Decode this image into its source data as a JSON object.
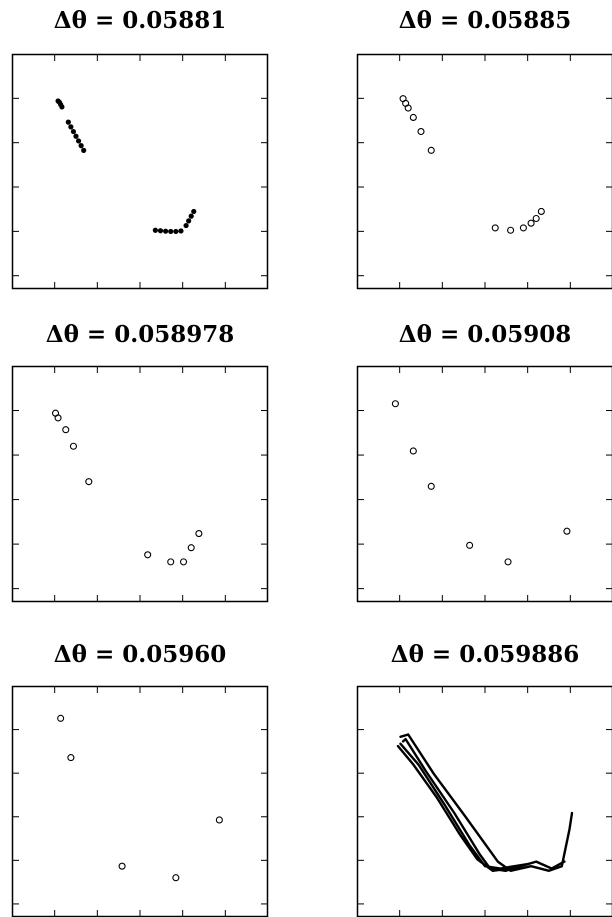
{
  "chart_data": [
    {
      "type": "scatter",
      "title": "Δθ = 0.05881",
      "xlim": [
        0,
        1
      ],
      "ylim": [
        0,
        1
      ],
      "marker": "dense",
      "points": [
        [
          0.18,
          0.8
        ],
        [
          0.185,
          0.795
        ],
        [
          0.19,
          0.785
        ],
        [
          0.195,
          0.775
        ],
        [
          0.22,
          0.71
        ],
        [
          0.23,
          0.69
        ],
        [
          0.24,
          0.67
        ],
        [
          0.25,
          0.65
        ],
        [
          0.26,
          0.63
        ],
        [
          0.27,
          0.61
        ],
        [
          0.28,
          0.59
        ],
        [
          0.56,
          0.25
        ],
        [
          0.58,
          0.248
        ],
        [
          0.6,
          0.246
        ],
        [
          0.62,
          0.245
        ],
        [
          0.64,
          0.245
        ],
        [
          0.66,
          0.247
        ],
        [
          0.68,
          0.27
        ],
        [
          0.69,
          0.29
        ],
        [
          0.7,
          0.31
        ],
        [
          0.71,
          0.33
        ]
      ]
    },
    {
      "type": "scatter",
      "title": "Δθ = 0.05885",
      "xlim": [
        0,
        1
      ],
      "ylim": [
        0,
        1
      ],
      "marker": "circle",
      "points": [
        [
          0.18,
          0.81
        ],
        [
          0.19,
          0.79
        ],
        [
          0.2,
          0.77
        ],
        [
          0.22,
          0.73
        ],
        [
          0.25,
          0.67
        ],
        [
          0.29,
          0.59
        ],
        [
          0.54,
          0.26
        ],
        [
          0.6,
          0.25
        ],
        [
          0.65,
          0.26
        ],
        [
          0.68,
          0.28
        ],
        [
          0.7,
          0.3
        ],
        [
          0.72,
          0.33
        ]
      ]
    },
    {
      "type": "scatter",
      "title": "Δθ = 0.058978",
      "xlim": [
        0,
        1
      ],
      "ylim": [
        0,
        1
      ],
      "marker": "circle",
      "points": [
        [
          0.17,
          0.8
        ],
        [
          0.18,
          0.78
        ],
        [
          0.21,
          0.73
        ],
        [
          0.24,
          0.66
        ],
        [
          0.3,
          0.51
        ],
        [
          0.53,
          0.2
        ],
        [
          0.62,
          0.17
        ],
        [
          0.67,
          0.17
        ],
        [
          0.7,
          0.23
        ],
        [
          0.73,
          0.29
        ]
      ]
    },
    {
      "type": "scatter",
      "title": "Δθ = 0.05908",
      "xlim": [
        0,
        1
      ],
      "ylim": [
        0,
        1
      ],
      "marker": "circle",
      "points": [
        [
          0.15,
          0.84
        ],
        [
          0.22,
          0.64
        ],
        [
          0.29,
          0.49
        ],
        [
          0.44,
          0.24
        ],
        [
          0.59,
          0.17
        ],
        [
          0.82,
          0.3
        ]
      ]
    },
    {
      "type": "scatter",
      "title": "Δθ = 0.05960",
      "xlim": [
        0,
        1
      ],
      "ylim": [
        0,
        1
      ],
      "marker": "circle",
      "points": [
        [
          0.19,
          0.86
        ],
        [
          0.23,
          0.69
        ],
        [
          0.43,
          0.22
        ],
        [
          0.64,
          0.17
        ],
        [
          0.81,
          0.42
        ]
      ]
    },
    {
      "type": "line",
      "title": "Δθ = 0.059886",
      "xlim": [
        0,
        1
      ],
      "ylim": [
        0,
        1
      ],
      "series": [
        {
          "points": [
            [
              0.17,
              0.78
            ],
            [
              0.2,
              0.79
            ],
            [
              0.3,
              0.62
            ],
            [
              0.42,
              0.44
            ],
            [
              0.55,
              0.24
            ],
            [
              0.6,
              0.2
            ],
            [
              0.68,
              0.22
            ],
            [
              0.75,
              0.2
            ],
            [
              0.8,
              0.22
            ],
            [
              0.83,
              0.38
            ],
            [
              0.84,
              0.45
            ]
          ]
        },
        {
          "points": [
            [
              0.18,
              0.76
            ],
            [
              0.19,
              0.77
            ],
            [
              0.27,
              0.63
            ],
            [
              0.38,
              0.45
            ],
            [
              0.48,
              0.27
            ],
            [
              0.52,
              0.21
            ],
            [
              0.58,
              0.2
            ],
            [
              0.7,
              0.24
            ],
            [
              0.76,
              0.21
            ],
            [
              0.81,
              0.24
            ]
          ]
        },
        {
          "points": [
            [
              0.17,
              0.75
            ],
            [
              0.24,
              0.66
            ],
            [
              0.34,
              0.49
            ],
            [
              0.44,
              0.31
            ],
            [
              0.5,
              0.22
            ],
            [
              0.56,
              0.21
            ],
            [
              0.67,
              0.23
            ]
          ]
        },
        {
          "points": [
            [
              0.16,
              0.74
            ],
            [
              0.22,
              0.66
            ],
            [
              0.31,
              0.52
            ],
            [
              0.4,
              0.36
            ],
            [
              0.47,
              0.25
            ],
            [
              0.53,
              0.2
            ],
            [
              0.6,
              0.21
            ]
          ]
        }
      ]
    }
  ]
}
